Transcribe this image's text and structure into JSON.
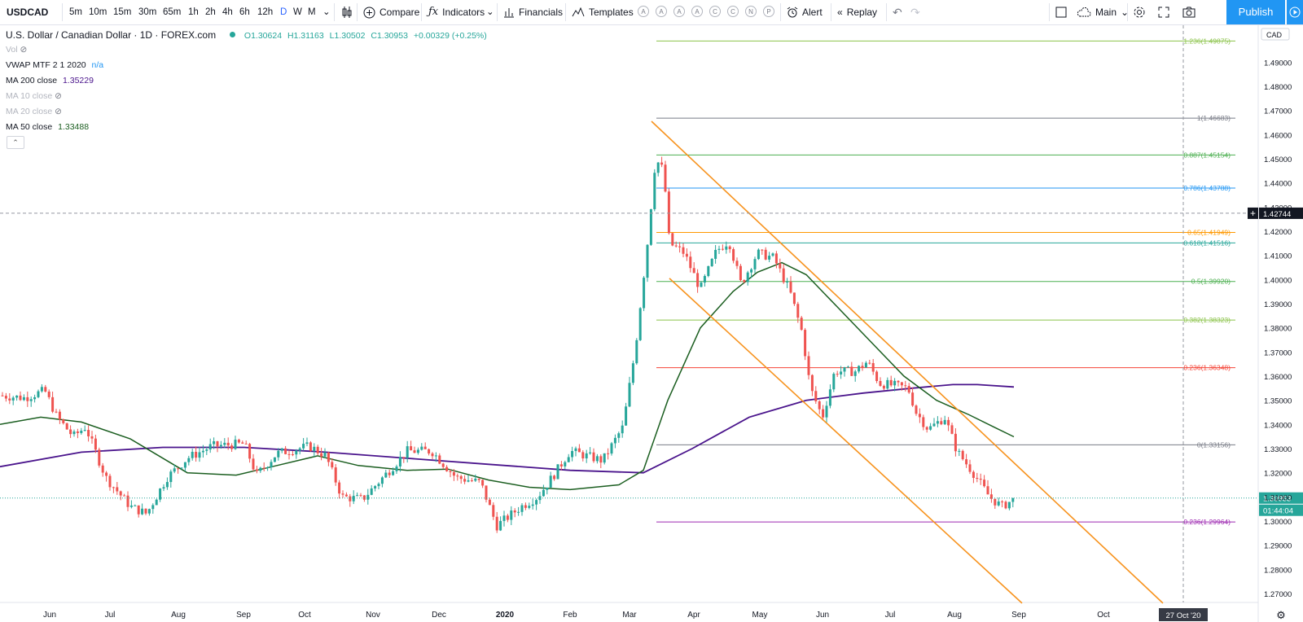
{
  "toolbar": {
    "symbol": "USDCAD",
    "intervals": [
      "5m",
      "10m",
      "15m",
      "30m",
      "65m",
      "1h",
      "2h",
      "4h",
      "6h",
      "12h",
      "D",
      "W",
      "M"
    ],
    "active_interval": "D",
    "compare": "Compare",
    "indicators": "Indicators",
    "financials": "Financials",
    "templates": "Templates",
    "template_letters": [
      "A",
      "A",
      "A",
      "A",
      "C",
      "C",
      "N",
      "P"
    ],
    "alert": "Alert",
    "replay": "Replay",
    "layout": "Main",
    "publish": "Publish"
  },
  "legend": {
    "title": "U.S. Dollar / Canadian Dollar · 1D · FOREX.com",
    "ohlc": {
      "o": "O1.30624",
      "h": "H1.31163",
      "l": "L1.30502",
      "c": "C1.30953",
      "chg": "+0.00329 (+0.25%)"
    },
    "vol": "Vol",
    "vwap_label": "VWAP MTF 2 1 2020",
    "vwap_value": "n/a",
    "ma200_label": "MA 200 close",
    "ma200_value": "1.35229",
    "ma10_label": "MA 10 close",
    "ma20_label": "MA 20 close",
    "ma50_label": "MA 50 close",
    "ma50_value": "1.33488"
  },
  "price_axis": {
    "currency": "CAD",
    "ticks": [
      "1.49000",
      "1.48000",
      "1.47000",
      "1.46000",
      "1.45000",
      "1.44000",
      "1.43000",
      "1.42000",
      "1.41000",
      "1.40000",
      "1.39000",
      "1.38000",
      "1.37000",
      "1.36000",
      "1.35000",
      "1.34000",
      "1.33000",
      "1.32000",
      "1.31000",
      "1.30000",
      "1.29000",
      "1.28000",
      "1.27000"
    ],
    "crosshair_price": "1.42744",
    "last_price": "1.30953",
    "countdown": "01:44:04"
  },
  "time_axis": {
    "labels": [
      "Jun",
      "Jul",
      "Aug",
      "Sep",
      "Oct",
      "Nov",
      "Dec",
      "2020",
      "Feb",
      "Mar",
      "Apr",
      "May",
      "Jun",
      "Jul",
      "Aug",
      "Sep",
      "Oct"
    ],
    "crosshair_date": "27 Oct '20"
  },
  "fib_levels": [
    {
      "label": "1.236(1.49875)",
      "price": 1.49875,
      "color": "#8bc34a"
    },
    {
      "label": "1(1.46683)",
      "price": 1.46683,
      "color": "#787b86"
    },
    {
      "label": "0.887(1.45154)",
      "price": 1.45154,
      "color": "#4caf50"
    },
    {
      "label": "0.786(1.43788)",
      "price": 1.43788,
      "color": "#2196f3"
    },
    {
      "label": "0.65(1.41949)",
      "price": 1.41949,
      "color": "#ff9800"
    },
    {
      "label": "0.618(1.41516)",
      "price": 1.41516,
      "color": "#26a69a"
    },
    {
      "label": "0.5(1.39920)",
      "price": 1.3992,
      "color": "#4caf50"
    },
    {
      "label": "0.382(1.38323)",
      "price": 1.38323,
      "color": "#8bc34a"
    },
    {
      "label": "0.236(1.36348)",
      "price": 1.36348,
      "color": "#f44336"
    },
    {
      "label": "0(1.33156)",
      "price": 1.33156,
      "color": "#787b86"
    },
    {
      "label": "0.236(1.29964)",
      "price": 1.29964,
      "color": "#9c27b0"
    }
  ],
  "colors": {
    "up": "#26a69a",
    "down": "#ef5350",
    "ma50": "#1b5e20",
    "ma200": "#4a148c",
    "channel": "#f7931e",
    "accent": "#2196f3"
  }
}
